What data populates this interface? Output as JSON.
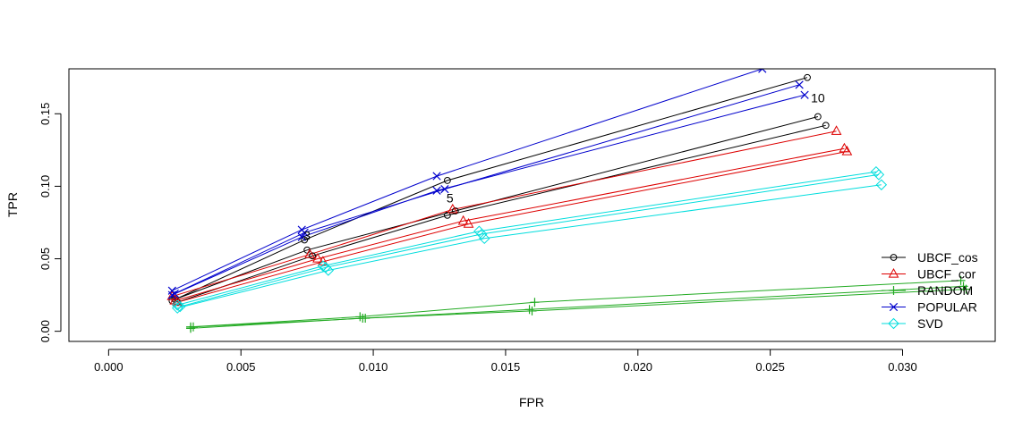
{
  "chart_data": {
    "type": "line",
    "xlabel": "FPR",
    "ylabel": "TPR",
    "xlim": [
      -0.0015,
      0.0335
    ],
    "ylim": [
      -0.007,
      0.181
    ],
    "x_ticks": [
      "0.000",
      "0.005",
      "0.010",
      "0.015",
      "0.020",
      "0.025",
      "0.030"
    ],
    "x_tick_values": [
      0,
      0.005,
      0.01,
      0.015,
      0.02,
      0.025,
      0.03
    ],
    "y_ticks": [
      "0.00",
      "0.05",
      "0.10",
      "0.15"
    ],
    "y_tick_values": [
      0,
      0.05,
      0.1,
      0.15
    ],
    "legend_position": "bottom-right",
    "annotations": [
      {
        "text": "3",
        "x": 0.0075,
        "y": 0.063
      },
      {
        "text": "5",
        "x": 0.0129,
        "y": 0.089
      },
      {
        "text": "10",
        "x": 0.0268,
        "y": 0.158
      }
    ],
    "series": [
      {
        "name": "UBCF_cos",
        "color": "#000000",
        "marker": "circle",
        "runs": [
          [
            [
              0.0024,
              0.021
            ],
            [
              0.0074,
              0.063
            ],
            [
              0.0128,
              0.104
            ],
            [
              0.0264,
              0.175
            ]
          ],
          [
            [
              0.0025,
              0.022
            ],
            [
              0.0075,
              0.056
            ],
            [
              0.0131,
              0.083
            ],
            [
              0.0268,
              0.148
            ]
          ],
          [
            [
              0.0026,
              0.02
            ],
            [
              0.0077,
              0.052
            ],
            [
              0.0128,
              0.08
            ],
            [
              0.0271,
              0.142
            ]
          ]
        ]
      },
      {
        "name": "UBCF_cor",
        "color": "#dd0000",
        "marker": "triangle",
        "runs": [
          [
            [
              0.0024,
              0.024
            ],
            [
              0.0076,
              0.053
            ],
            [
              0.013,
              0.084
            ],
            [
              0.0275,
              0.138
            ]
          ],
          [
            [
              0.0025,
              0.021
            ],
            [
              0.0079,
              0.05
            ],
            [
              0.0134,
              0.076
            ],
            [
              0.0278,
              0.126
            ]
          ],
          [
            [
              0.0026,
              0.02
            ],
            [
              0.0081,
              0.048
            ],
            [
              0.0136,
              0.074
            ],
            [
              0.0279,
              0.124
            ]
          ]
        ]
      },
      {
        "name": "RANDOM",
        "color": "#22aa22",
        "marker": "plus",
        "runs": [
          [
            [
              0.0031,
              0.003
            ],
            [
              0.0095,
              0.01
            ],
            [
              0.0161,
              0.02
            ],
            [
              0.0322,
              0.035
            ]
          ],
          [
            [
              0.0031,
              0.002
            ],
            [
              0.0096,
              0.009
            ],
            [
              0.0159,
              0.015
            ],
            [
              0.0323,
              0.031
            ]
          ],
          [
            [
              0.0032,
              0.003
            ],
            [
              0.0097,
              0.009
            ],
            [
              0.016,
              0.014
            ],
            [
              0.0324,
              0.029
            ]
          ]
        ]
      },
      {
        "name": "POPULAR",
        "color": "#0000cc",
        "marker": "cross",
        "runs": [
          [
            [
              0.0024,
              0.028
            ],
            [
              0.0073,
              0.07
            ],
            [
              0.0124,
              0.107
            ],
            [
              0.0247,
              0.181
            ]
          ],
          [
            [
              0.0025,
              0.026
            ],
            [
              0.0074,
              0.068
            ],
            [
              0.0127,
              0.098
            ],
            [
              0.0261,
              0.17
            ]
          ],
          [
            [
              0.0024,
              0.025
            ],
            [
              0.0073,
              0.065
            ],
            [
              0.0124,
              0.097
            ],
            [
              0.0263,
              0.163
            ]
          ]
        ]
      },
      {
        "name": "SVD",
        "color": "#00dddd",
        "marker": "diamond",
        "runs": [
          [
            [
              0.0026,
              0.018
            ],
            [
              0.0081,
              0.045
            ],
            [
              0.014,
              0.069
            ],
            [
              0.029,
              0.11
            ]
          ],
          [
            [
              0.0027,
              0.017
            ],
            [
              0.0082,
              0.044
            ],
            [
              0.0141,
              0.067
            ],
            [
              0.0291,
              0.108
            ]
          ],
          [
            [
              0.0026,
              0.016
            ],
            [
              0.0083,
              0.042
            ],
            [
              0.0142,
              0.064
            ],
            [
              0.0292,
              0.101
            ]
          ]
        ]
      }
    ]
  }
}
